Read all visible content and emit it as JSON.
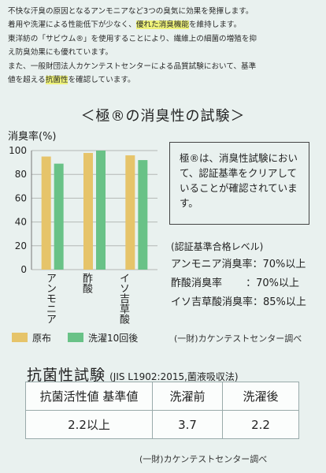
{
  "intro": {
    "line1": "不快な汗臭の原因となるアンモニアなど3つの臭気に効果を発揮します。",
    "line2_pre": "着用や洗濯による性能低下が少なく、",
    "line2_hl": "優れた消臭機能",
    "line2_post": "を維持します。",
    "line3": "東洋紡の「サビウム®」を使用することにより、繊維上の細菌の増殖を抑",
    "line4": "え防臭効果にも優れています。",
    "line5": "また、一般財団法人カケンテストセンターによる品質試験において、基準",
    "line6_pre": "値を超える",
    "line6_hl": "抗菌性",
    "line6_post": "を確認しています。"
  },
  "deodor_title": "＜極®の消臭性の試験＞",
  "chart_data": {
    "type": "bar",
    "ylabel": "消臭率(%)",
    "ylim": [
      0,
      100
    ],
    "yticks": [
      0,
      20,
      40,
      60,
      80,
      100
    ],
    "categories": [
      "アンモニア",
      "酢酸",
      "イソ吉草酸"
    ],
    "series": [
      {
        "name": "原布",
        "color": "#e6c46a",
        "values": [
          95,
          98,
          96
        ]
      },
      {
        "name": "洗濯10回後",
        "color": "#69c287",
        "values": [
          89,
          100,
          92
        ]
      }
    ]
  },
  "note": "極®は、消臭性試験において、認証基準をクリアしていることが確認されています。",
  "criteria": {
    "title": "(認証基準合格レベル)",
    "rows": [
      "アンモニア消臭率：70%以上",
      "酢酸消臭率 　　：70%以上",
      "イソ吉草酸消臭率：85%以上"
    ]
  },
  "source": "(一財)カケンテストセンター調べ",
  "antibacterial": {
    "title": "抗菌性試験",
    "subtitle": "(JIS L1902:2015,菌液吸収法)",
    "headers": [
      "抗菌活性値 基準値",
      "洗濯前",
      "洗濯後"
    ],
    "values": [
      "2.2以上",
      "3.7",
      "2.2"
    ]
  },
  "colors": {
    "background": "#e9f1ef",
    "highlight": "#eef27a"
  }
}
